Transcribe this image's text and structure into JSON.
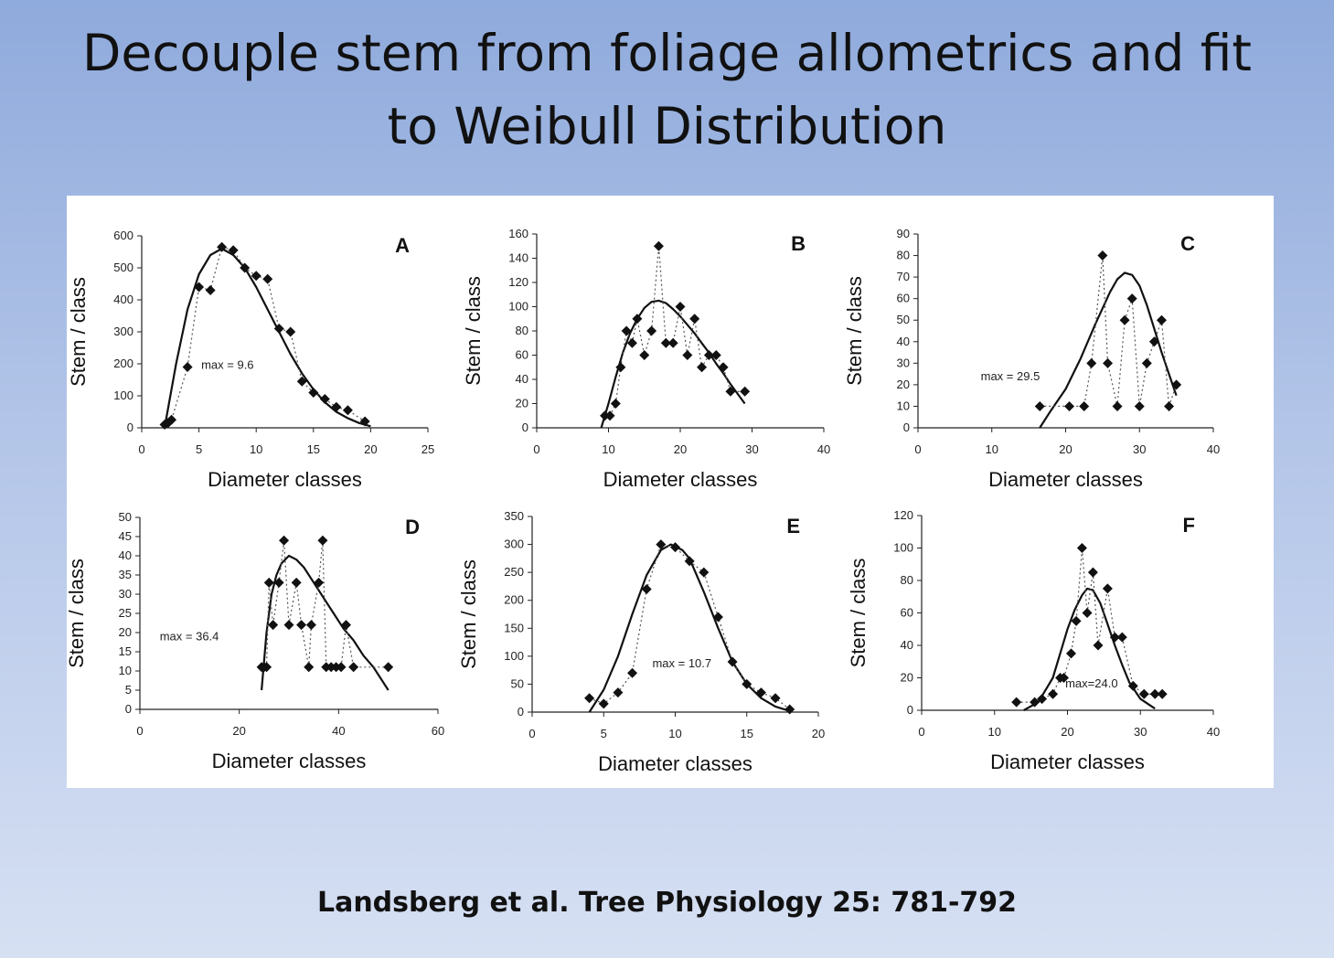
{
  "slide": {
    "title_line1": "Decouple stem from foliage allometrics and fit",
    "title_line2": "to Weibull Distribution",
    "citation": "Landsberg et al. Tree Physiology 25: 781-792"
  },
  "colors": {
    "marker": "#111111",
    "fit_line": "#111111",
    "dotted": "#555555"
  },
  "chart_data": [
    {
      "type": "line",
      "panel": "A",
      "xlabel": "Diameter classes",
      "ylabel": "Stem / class",
      "xlim": [
        0,
        25
      ],
      "ylim": [
        0,
        600
      ],
      "xticks": [
        0,
        5,
        10,
        15,
        20,
        25
      ],
      "yticks": [
        0,
        100,
        200,
        300,
        400,
        500,
        600
      ],
      "annotation": "max = 9.6",
      "annot_at": [
        5.2,
        185
      ],
      "observed": {
        "x": [
          2,
          2.3,
          2.6,
          4,
          5,
          6,
          7,
          8,
          9,
          10,
          11,
          12,
          13,
          14,
          15,
          16,
          17,
          18,
          19.5
        ],
        "y": [
          10,
          15,
          25,
          190,
          440,
          430,
          565,
          555,
          500,
          475,
          465,
          310,
          300,
          145,
          110,
          90,
          65,
          55,
          20
        ]
      },
      "fit": {
        "x": [
          2,
          3,
          4,
          5,
          6,
          7,
          8,
          9,
          10,
          11,
          12,
          13,
          14,
          15,
          16,
          17,
          18,
          19,
          20
        ],
        "y": [
          0,
          200,
          370,
          480,
          540,
          560,
          540,
          500,
          440,
          370,
          300,
          230,
          170,
          120,
          80,
          50,
          30,
          15,
          5
        ]
      }
    },
    {
      "type": "line",
      "panel": "B",
      "xlabel": "Diameter classes",
      "ylabel": "Stem / class",
      "xlim": [
        0,
        40
      ],
      "ylim": [
        0,
        160
      ],
      "xticks": [
        0,
        10,
        20,
        30,
        40
      ],
      "yticks": [
        0,
        20,
        40,
        60,
        80,
        100,
        120,
        140,
        160
      ],
      "annotation": "",
      "annot_at": [
        0,
        0
      ],
      "observed": {
        "x": [
          9.5,
          10.2,
          11,
          11.7,
          12.5,
          13.3,
          14,
          15,
          16,
          17,
          18,
          19,
          20,
          21,
          22,
          23,
          24,
          25,
          26,
          27,
          29
        ],
        "y": [
          10,
          10,
          20,
          50,
          80,
          70,
          90,
          60,
          80,
          150,
          70,
          70,
          100,
          60,
          90,
          50,
          60,
          60,
          50,
          30,
          30
        ]
      },
      "fit": {
        "x": [
          9,
          10,
          11,
          12,
          13,
          14,
          15,
          16,
          17,
          18,
          19,
          20,
          21,
          22,
          23,
          24,
          25,
          26,
          27,
          28,
          29
        ],
        "y": [
          0,
          20,
          42,
          62,
          78,
          90,
          99,
          104,
          105,
          103,
          98,
          92,
          85,
          78,
          70,
          62,
          53,
          45,
          36,
          28,
          20
        ]
      }
    },
    {
      "type": "line",
      "panel": "C",
      "xlabel": "Diameter classes",
      "ylabel": "Stem / class",
      "xlim": [
        0,
        40
      ],
      "ylim": [
        0,
        90
      ],
      "xticks": [
        0,
        10,
        20,
        30,
        40
      ],
      "yticks": [
        0,
        10,
        20,
        30,
        40,
        50,
        60,
        70,
        80,
        90
      ],
      "annotation": "max = 29.5",
      "annot_at": [
        8.5,
        22
      ],
      "observed": {
        "x": [
          16.5,
          20.5,
          22.5,
          23.5,
          25,
          25.7,
          27,
          28,
          29,
          30,
          31,
          32,
          33,
          34,
          35
        ],
        "y": [
          10,
          10,
          10,
          30,
          80,
          30,
          10,
          50,
          60,
          10,
          30,
          40,
          50,
          10,
          20
        ]
      },
      "fit": {
        "x": [
          16.5,
          18,
          20,
          22,
          24,
          26,
          27,
          28,
          29,
          30,
          31,
          32,
          33,
          34,
          35
        ],
        "y": [
          0,
          8,
          18,
          32,
          48,
          63,
          69,
          72,
          71,
          66,
          57,
          46,
          35,
          25,
          15
        ]
      }
    },
    {
      "type": "line",
      "panel": "D",
      "xlabel": "Diameter classes",
      "ylabel": "Stem / class",
      "xlim": [
        0,
        60
      ],
      "ylim": [
        0,
        50
      ],
      "xticks": [
        0,
        20,
        40,
        60
      ],
      "yticks": [
        0,
        5,
        10,
        15,
        20,
        25,
        30,
        35,
        40,
        45,
        50
      ],
      "annotation": "max = 36.4",
      "annot_at": [
        4,
        18
      ],
      "observed": {
        "x": [
          24.5,
          25,
          25.5,
          26,
          26.8,
          28,
          29,
          30,
          31.5,
          32.5,
          34,
          34.5,
          36,
          36.8,
          37.5,
          38.5,
          39.5,
          40.5,
          41.5,
          43,
          50
        ],
        "y": [
          11,
          11,
          11,
          33,
          22,
          33,
          44,
          22,
          33,
          22,
          11,
          22,
          33,
          44,
          11,
          11,
          11,
          11,
          22,
          11,
          11
        ]
      },
      "fit": {
        "x": [
          24.5,
          25.5,
          26.5,
          27.5,
          28.5,
          30,
          31.5,
          33,
          35,
          37,
          39,
          41,
          43,
          45,
          47,
          50
        ],
        "y": [
          5,
          20,
          30,
          35,
          38,
          40,
          39,
          37,
          33,
          29,
          25,
          21,
          18,
          14,
          11,
          5
        ]
      }
    },
    {
      "type": "line",
      "panel": "E",
      "xlabel": "Diameter classes",
      "ylabel": "Stem / class",
      "xlim": [
        0,
        20
      ],
      "ylim": [
        0,
        350
      ],
      "xticks": [
        0,
        5,
        10,
        15,
        20
      ],
      "yticks": [
        0,
        50,
        100,
        150,
        200,
        250,
        300,
        350
      ],
      "annotation": "max = 10.7",
      "annot_at": [
        8.4,
        80
      ],
      "observed": {
        "x": [
          4,
          5,
          6,
          7,
          8,
          9,
          10,
          11,
          12,
          13,
          14,
          15,
          16,
          17,
          18
        ],
        "y": [
          25,
          15,
          35,
          70,
          220,
          300,
          295,
          270,
          250,
          170,
          90,
          50,
          35,
          25,
          5
        ]
      },
      "fit": {
        "x": [
          4,
          5,
          6,
          7,
          8,
          9,
          9.7,
          10.5,
          11,
          12,
          13,
          14,
          15,
          16,
          17,
          18
        ],
        "y": [
          0,
          40,
          100,
          175,
          245,
          290,
          300,
          290,
          275,
          215,
          150,
          90,
          50,
          25,
          10,
          2
        ]
      }
    },
    {
      "type": "line",
      "panel": "F",
      "xlabel": "Diameter classes",
      "ylabel": "Stem / class",
      "xlim": [
        0,
        40
      ],
      "ylim": [
        0,
        120
      ],
      "xticks": [
        0,
        10,
        20,
        30,
        40
      ],
      "yticks": [
        0,
        20,
        40,
        60,
        80,
        100,
        120
      ],
      "annotation": "max=24.0",
      "annot_at": [
        19.7,
        14
      ],
      "observed": {
        "x": [
          13,
          15.5,
          16.5,
          18,
          19,
          19.5,
          20.5,
          21.2,
          22,
          22.7,
          23.5,
          24.2,
          25.5,
          26.5,
          27.5,
          29,
          30.5,
          32,
          33
        ],
        "y": [
          5,
          5,
          7,
          10,
          20,
          20,
          35,
          55,
          100,
          60,
          85,
          40,
          75,
          45,
          45,
          15,
          10,
          10,
          10
        ]
      },
      "fit": {
        "x": [
          14,
          16,
          18,
          19,
          20,
          21,
          22,
          22.7,
          23.5,
          24.5,
          25.5,
          26.5,
          27.5,
          28.5,
          30,
          32
        ],
        "y": [
          0,
          5,
          20,
          35,
          50,
          62,
          71,
          75,
          74,
          66,
          53,
          40,
          28,
          17,
          7,
          1
        ]
      }
    }
  ]
}
